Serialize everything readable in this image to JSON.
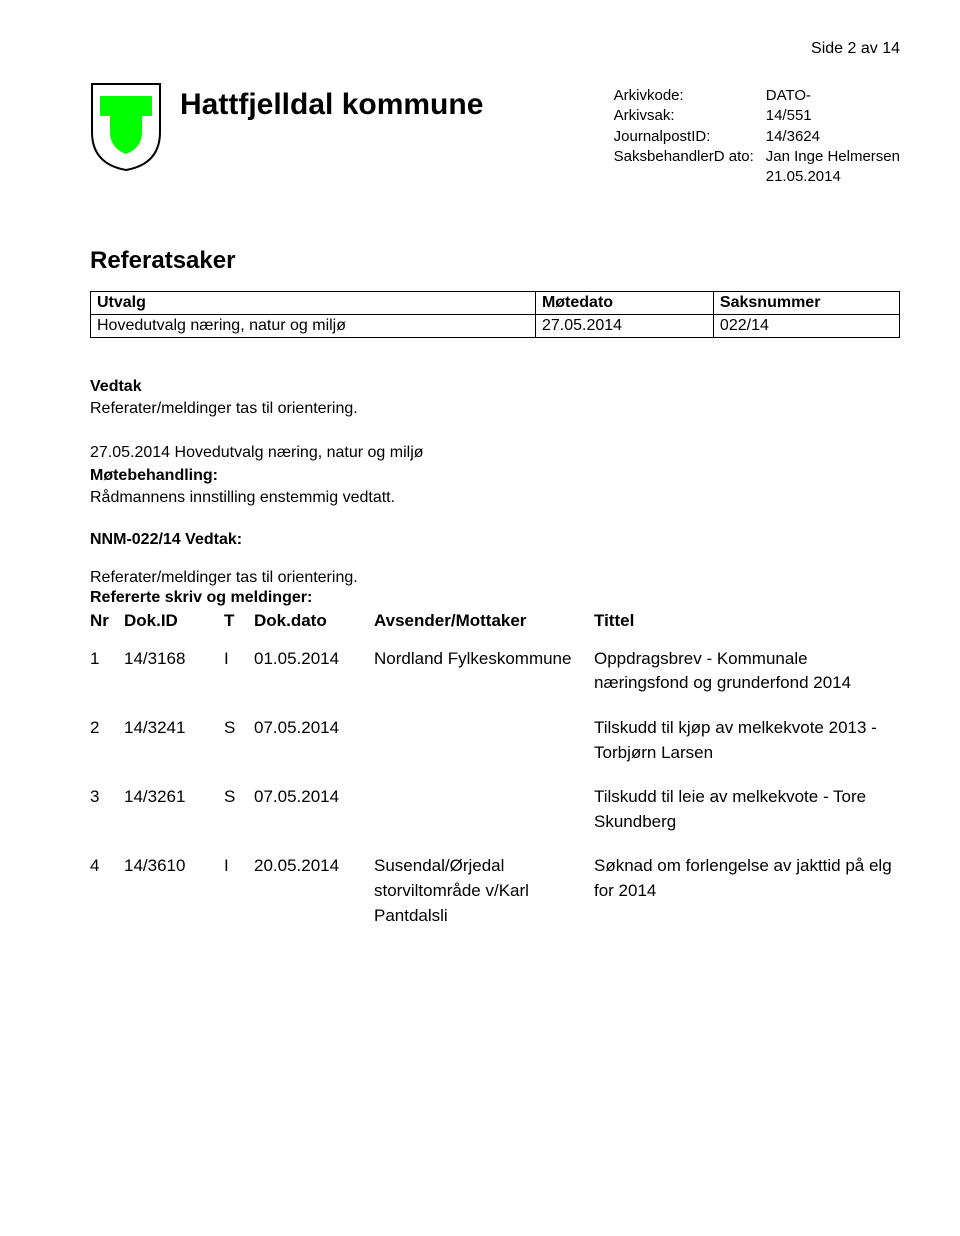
{
  "page_marker": "Side 2 av 14",
  "shield": {
    "outline_color": "#000000",
    "fill_color": "#00ff00",
    "bg_color": "#ffffff"
  },
  "kommune_title": "Hattfjelldal kommune",
  "meta": {
    "labels": {
      "arkivkode": "Arkivkode:",
      "arkivsak": "Arkivsak:",
      "journalpost": "JournalpostID:",
      "saksbehandler": "SaksbehandlerD ato:"
    },
    "values": {
      "arkivkode": "DATO-",
      "arkivsak": "14/551",
      "journalpost": "14/3624",
      "saksbehandler_name": "Jan Inge Helmersen",
      "dato": "21.05.2014"
    }
  },
  "referatsaker_title": "Referatsaker",
  "utvalg_table": {
    "headers": {
      "utvalg": "Utvalg",
      "motedato": "Møtedato",
      "saksnummer": "Saksnummer"
    },
    "row": {
      "utvalg": "Hovedutvalg næring, natur og miljø",
      "motedato": "27.05.2014",
      "saksnummer": "022/14"
    }
  },
  "vedtak": {
    "heading": "Vedtak",
    "text": "Referater/meldinger tas til orientering."
  },
  "motebehandling": {
    "dateline": "27.05.2014 Hovedutvalg næring, natur og miljø",
    "heading": "Møtebehandling:",
    "text": "Rådmannens innstilling enstemmig vedtatt."
  },
  "nnm": {
    "heading": "NNM-022/14 Vedtak:",
    "text": "Referater/meldinger tas til orientering."
  },
  "refererte": {
    "heading": "Refererte skriv og meldinger:",
    "columns": {
      "nr": "Nr",
      "dokid": "Dok.ID",
      "t": "T",
      "dokdato": "Dok.dato",
      "avsender": "Avsender/Mottaker",
      "tittel": "Tittel"
    },
    "rows": [
      {
        "nr": "1",
        "dokid": "14/3168",
        "t": "I",
        "dokdato": "01.05.2014",
        "avsender": "Nordland Fylkeskommune",
        "tittel": "Oppdragsbrev - Kommunale næringsfond og grunderfond 2014"
      },
      {
        "nr": "2",
        "dokid": "14/3241",
        "t": "S",
        "dokdato": "07.05.2014",
        "avsender": "",
        "tittel": "Tilskudd til kjøp av melkekvote 2013 - Torbjørn Larsen"
      },
      {
        "nr": "3",
        "dokid": "14/3261",
        "t": "S",
        "dokdato": "07.05.2014",
        "avsender": "",
        "tittel": "Tilskudd til leie av melkekvote - Tore Skundberg"
      },
      {
        "nr": "4",
        "dokid": "14/3610",
        "t": "I",
        "dokdato": "20.05.2014",
        "avsender": "Susendal/Ørjedal storviltområde v/Karl Pantdalsli",
        "tittel": "Søknad om forlengelse av jakttid på elg for 2014"
      }
    ]
  }
}
